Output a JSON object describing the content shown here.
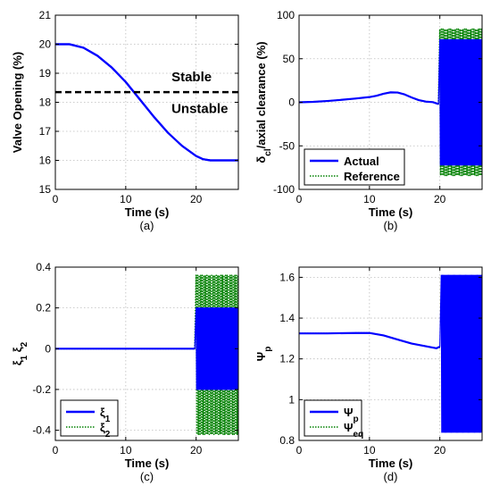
{
  "colors": {
    "actual": "#0000ff",
    "reference": "#008000",
    "threshold": "#000000",
    "grid": "#bdbdbd"
  },
  "chart_data": [
    {
      "id": "a",
      "type": "line",
      "caption": "(a)",
      "xlabel": "Time (s)",
      "ylabel": "Valve Opening (%)",
      "xlim": [
        0,
        26
      ],
      "ylim": [
        15,
        21
      ],
      "xticks": [
        0,
        10,
        20
      ],
      "yticks": [
        15,
        16,
        17,
        18,
        19,
        20,
        21
      ],
      "grid": true,
      "series": [
        {
          "x": [
            0,
            2,
            4,
            6,
            8,
            10,
            11,
            12,
            14,
            16,
            18,
            20,
            21,
            22,
            24,
            26
          ],
          "y": [
            20,
            20,
            19.88,
            19.6,
            19.2,
            18.7,
            18.4,
            18.1,
            17.5,
            16.95,
            16.5,
            16.15,
            16.04,
            16,
            16,
            16
          ]
        }
      ],
      "threshold": {
        "y": 18.35
      },
      "annotations": [
        {
          "text": "Stable",
          "x": 16.5,
          "y": 18.85
        },
        {
          "text": "Unstable",
          "x": 16.5,
          "y": 17.75
        }
      ]
    },
    {
      "id": "b",
      "type": "line",
      "caption": "(b)",
      "xlabel": "Time (s)",
      "ylabel": "δ",
      "ylabel_sub": "cl",
      "ylabel_rest": "/axial clearance (%)",
      "xlim": [
        0,
        26
      ],
      "ylim": [
        -100,
        100
      ],
      "xticks": [
        0,
        10,
        20
      ],
      "yticks": [
        -100,
        -50,
        0,
        50,
        100
      ],
      "grid": true,
      "series": [
        {
          "name": "Actual",
          "x": [
            0,
            2,
            4,
            6,
            8,
            10,
            11,
            12,
            13,
            14,
            15,
            16,
            17,
            18,
            19,
            19.8
          ],
          "y": [
            0,
            0.5,
            1.5,
            2.8,
            4.3,
            6,
            7.5,
            9.8,
            11.4,
            11.2,
            9,
            5.5,
            2.5,
            0.8,
            0.2,
            -2
          ],
          "oscillation": {
            "start": 20,
            "end": 26,
            "amplitude": 72
          }
        },
        {
          "name": "Reference",
          "x": [
            0,
            2,
            4,
            6,
            8,
            10,
            11,
            12,
            13,
            14,
            15,
            16,
            17,
            18,
            19,
            19.8
          ],
          "y": [
            0,
            0.5,
            1.5,
            2.8,
            4.3,
            6,
            7.5,
            9.8,
            11.4,
            11.2,
            9,
            5.5,
            2.5,
            0.8,
            0.2,
            -2
          ],
          "oscillation": {
            "start": 20,
            "end": 26,
            "amplitude": 84
          }
        }
      ],
      "legend": "bottom-left"
    },
    {
      "id": "c",
      "type": "line",
      "caption": "(c)",
      "xlabel": "Time (s)",
      "ylabel": "ξ",
      "ylabel_sub1": "1",
      "ylabel_mid": " ξ",
      "ylabel_sub2": "2",
      "xlim": [
        0,
        26
      ],
      "ylim": [
        -0.45,
        0.4
      ],
      "xticks": [
        0,
        10,
        20
      ],
      "yticks": [
        -0.4,
        -0.2,
        0,
        0.2,
        0.4
      ],
      "ytick_labels": [
        "-0.4",
        "-0.2",
        "0",
        "0.2",
        "0.4"
      ],
      "grid": true,
      "series": [
        {
          "name": "ξ",
          "sub": "1",
          "x": [
            0,
            19.8
          ],
          "y": [
            0,
            0
          ],
          "oscillation": {
            "start": 20,
            "end": 26,
            "amplitude": 0.2
          }
        },
        {
          "name": "ξ",
          "sub": "2",
          "x": [
            0,
            19.8
          ],
          "y": [
            0,
            0
          ],
          "oscillation": {
            "start": 20,
            "end": 26,
            "amplitude": 0.36,
            "minus": 0.42
          }
        }
      ],
      "legend": "bottom-left"
    },
    {
      "id": "d",
      "type": "line",
      "caption": "(d)",
      "xlabel": "Time (s)",
      "ylabel": "Ψ",
      "ylabel_sub": "p",
      "xlim": [
        0,
        26
      ],
      "ylim": [
        0.8,
        1.65
      ],
      "xticks": [
        0,
        10,
        20
      ],
      "yticks": [
        0.8,
        1,
        1.2,
        1.4,
        1.6
      ],
      "ytick_labels": [
        "0.8",
        "1",
        "1.2",
        "1.4",
        "1.6"
      ],
      "grid": true,
      "series": [
        {
          "name": "Ψ",
          "sub": "p",
          "x": [
            0,
            4,
            8,
            10,
            12,
            14,
            16,
            18,
            19.5,
            20
          ],
          "y": [
            1.325,
            1.325,
            1.327,
            1.327,
            1.315,
            1.295,
            1.275,
            1.262,
            1.252,
            1.26
          ],
          "oscillation": {
            "start": 20.2,
            "end": 26,
            "max": 1.61,
            "min": 0.84
          }
        },
        {
          "name": "Ψ",
          "sub": "eq",
          "x": [
            0,
            4,
            8,
            10,
            12,
            14,
            16,
            18,
            19.5,
            20
          ],
          "y": [
            1.325,
            1.325,
            1.327,
            1.327,
            1.315,
            1.295,
            1.275,
            1.262,
            1.252,
            1.255
          ]
        }
      ],
      "legend": "bottom-left"
    }
  ]
}
